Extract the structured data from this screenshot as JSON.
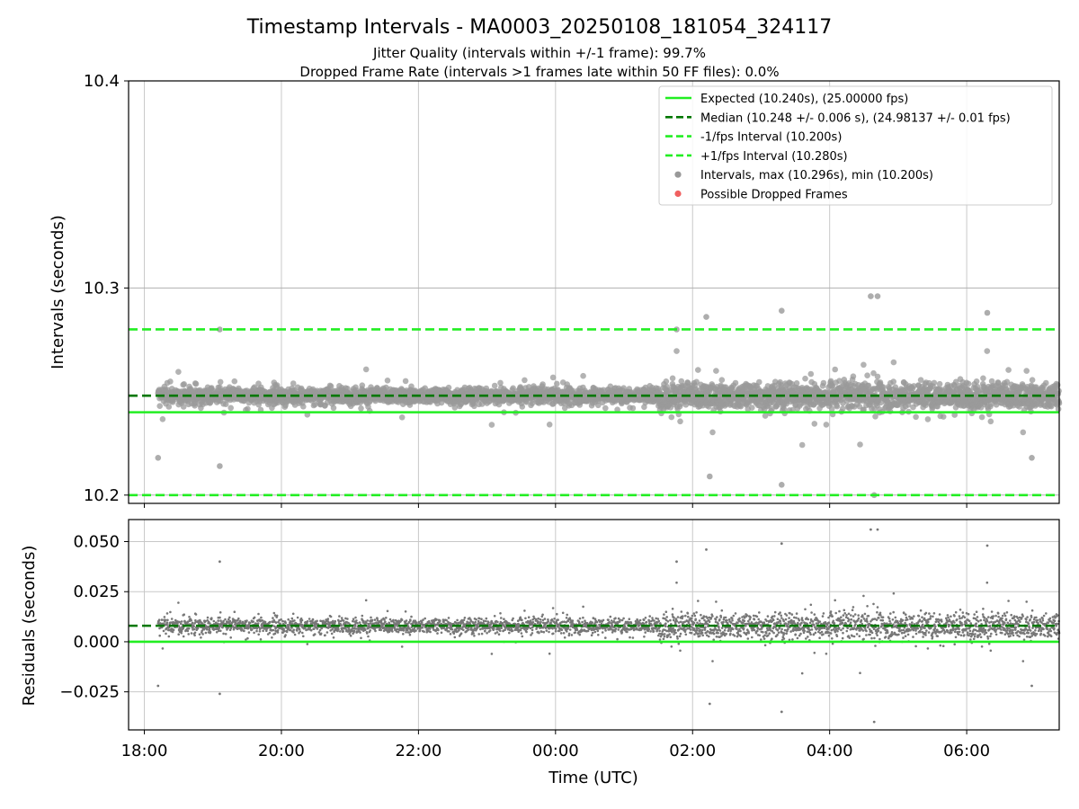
{
  "chart_data": [
    {
      "type": "scatter",
      "title": "Timestamp Intervals - MA0003_20250108_181054_324117",
      "subtitle_lines": [
        "Jitter Quality (intervals within +/-1 frame): 99.7%",
        "Dropped Frame Rate (intervals >1 frames late within 50 FF files): 0.0%"
      ],
      "xlabel": "",
      "ylabel": "Intervals (seconds)",
      "xlim_hours": [
        17.77,
        31.35
      ],
      "x_start_hour": 18.2,
      "x_end_hour": 31.35,
      "ylim": [
        10.196,
        10.4
      ],
      "y_ticks": [
        10.2,
        10.3,
        10.4
      ],
      "y_tick_labels": [
        "10.2",
        "10.3",
        "10.4"
      ],
      "grid": true,
      "legend_position": "top-right",
      "reference_lines": [
        {
          "name": "Expected (10.240s), (25.00000 fps)",
          "y": 10.24,
          "style": "solid",
          "color": "#22ee22"
        },
        {
          "name": "Median (10.248 +/- 0.006 s), (24.98137 +/- 0.01 fps)",
          "y": 10.248,
          "style": "dashed",
          "color": "#007700"
        },
        {
          "name": "-1/fps Interval (10.200s)",
          "y": 10.2,
          "style": "dashed",
          "color": "#22ee22"
        },
        {
          "name": "+1/fps Interval (10.280s)",
          "y": 10.28,
          "style": "dashed",
          "color": "#22ee22"
        }
      ],
      "scatter_series": [
        {
          "name": "Intervals, max (10.296s), min (10.200s)",
          "color": "#999999",
          "max": 10.296,
          "min": 10.2
        },
        {
          "name": "Possible Dropped Frames",
          "color": "#f06060",
          "count": 0
        }
      ],
      "sample_points": [
        {
          "time": "18:12",
          "y": 10.218
        },
        {
          "time": "19:06",
          "y": 10.28
        },
        {
          "time": "19:06",
          "y": 10.214
        },
        {
          "time": "01:46",
          "y": 10.28
        },
        {
          "time": "02:12",
          "y": 10.286
        },
        {
          "time": "02:15",
          "y": 10.209
        },
        {
          "time": "03:18",
          "y": 10.289
        },
        {
          "time": "03:18",
          "y": 10.205
        },
        {
          "time": "04:36",
          "y": 10.296
        },
        {
          "time": "04:42",
          "y": 10.296
        },
        {
          "time": "04:39",
          "y": 10.2
        },
        {
          "time": "06:18",
          "y": 10.288
        },
        {
          "time": "06:57",
          "y": 10.218
        }
      ]
    },
    {
      "type": "scatter",
      "title": "",
      "xlabel": "Time (UTC)",
      "ylabel": "Residuals (seconds)",
      "ylim": [
        -0.044,
        0.061
      ],
      "y_ticks": [
        -0.025,
        0.0,
        0.025,
        0.05
      ],
      "y_tick_labels": [
        "−0.025",
        "0.000",
        "0.025",
        "0.050"
      ],
      "x_ticks": [
        "18:00",
        "20:00",
        "22:00",
        "00:00",
        "02:00",
        "04:00",
        "06:00"
      ],
      "x_tick_hours": [
        18,
        20,
        22,
        24,
        26,
        28,
        30
      ],
      "grid": true,
      "reference_lines": [
        {
          "y": 0.0,
          "style": "solid",
          "color": "#22ee22"
        },
        {
          "y": 0.008,
          "style": "dashed",
          "color": "#007700"
        }
      ],
      "scatter_series": [
        {
          "color": "#777777",
          "max": 0.056,
          "min": -0.04
        }
      ]
    }
  ]
}
